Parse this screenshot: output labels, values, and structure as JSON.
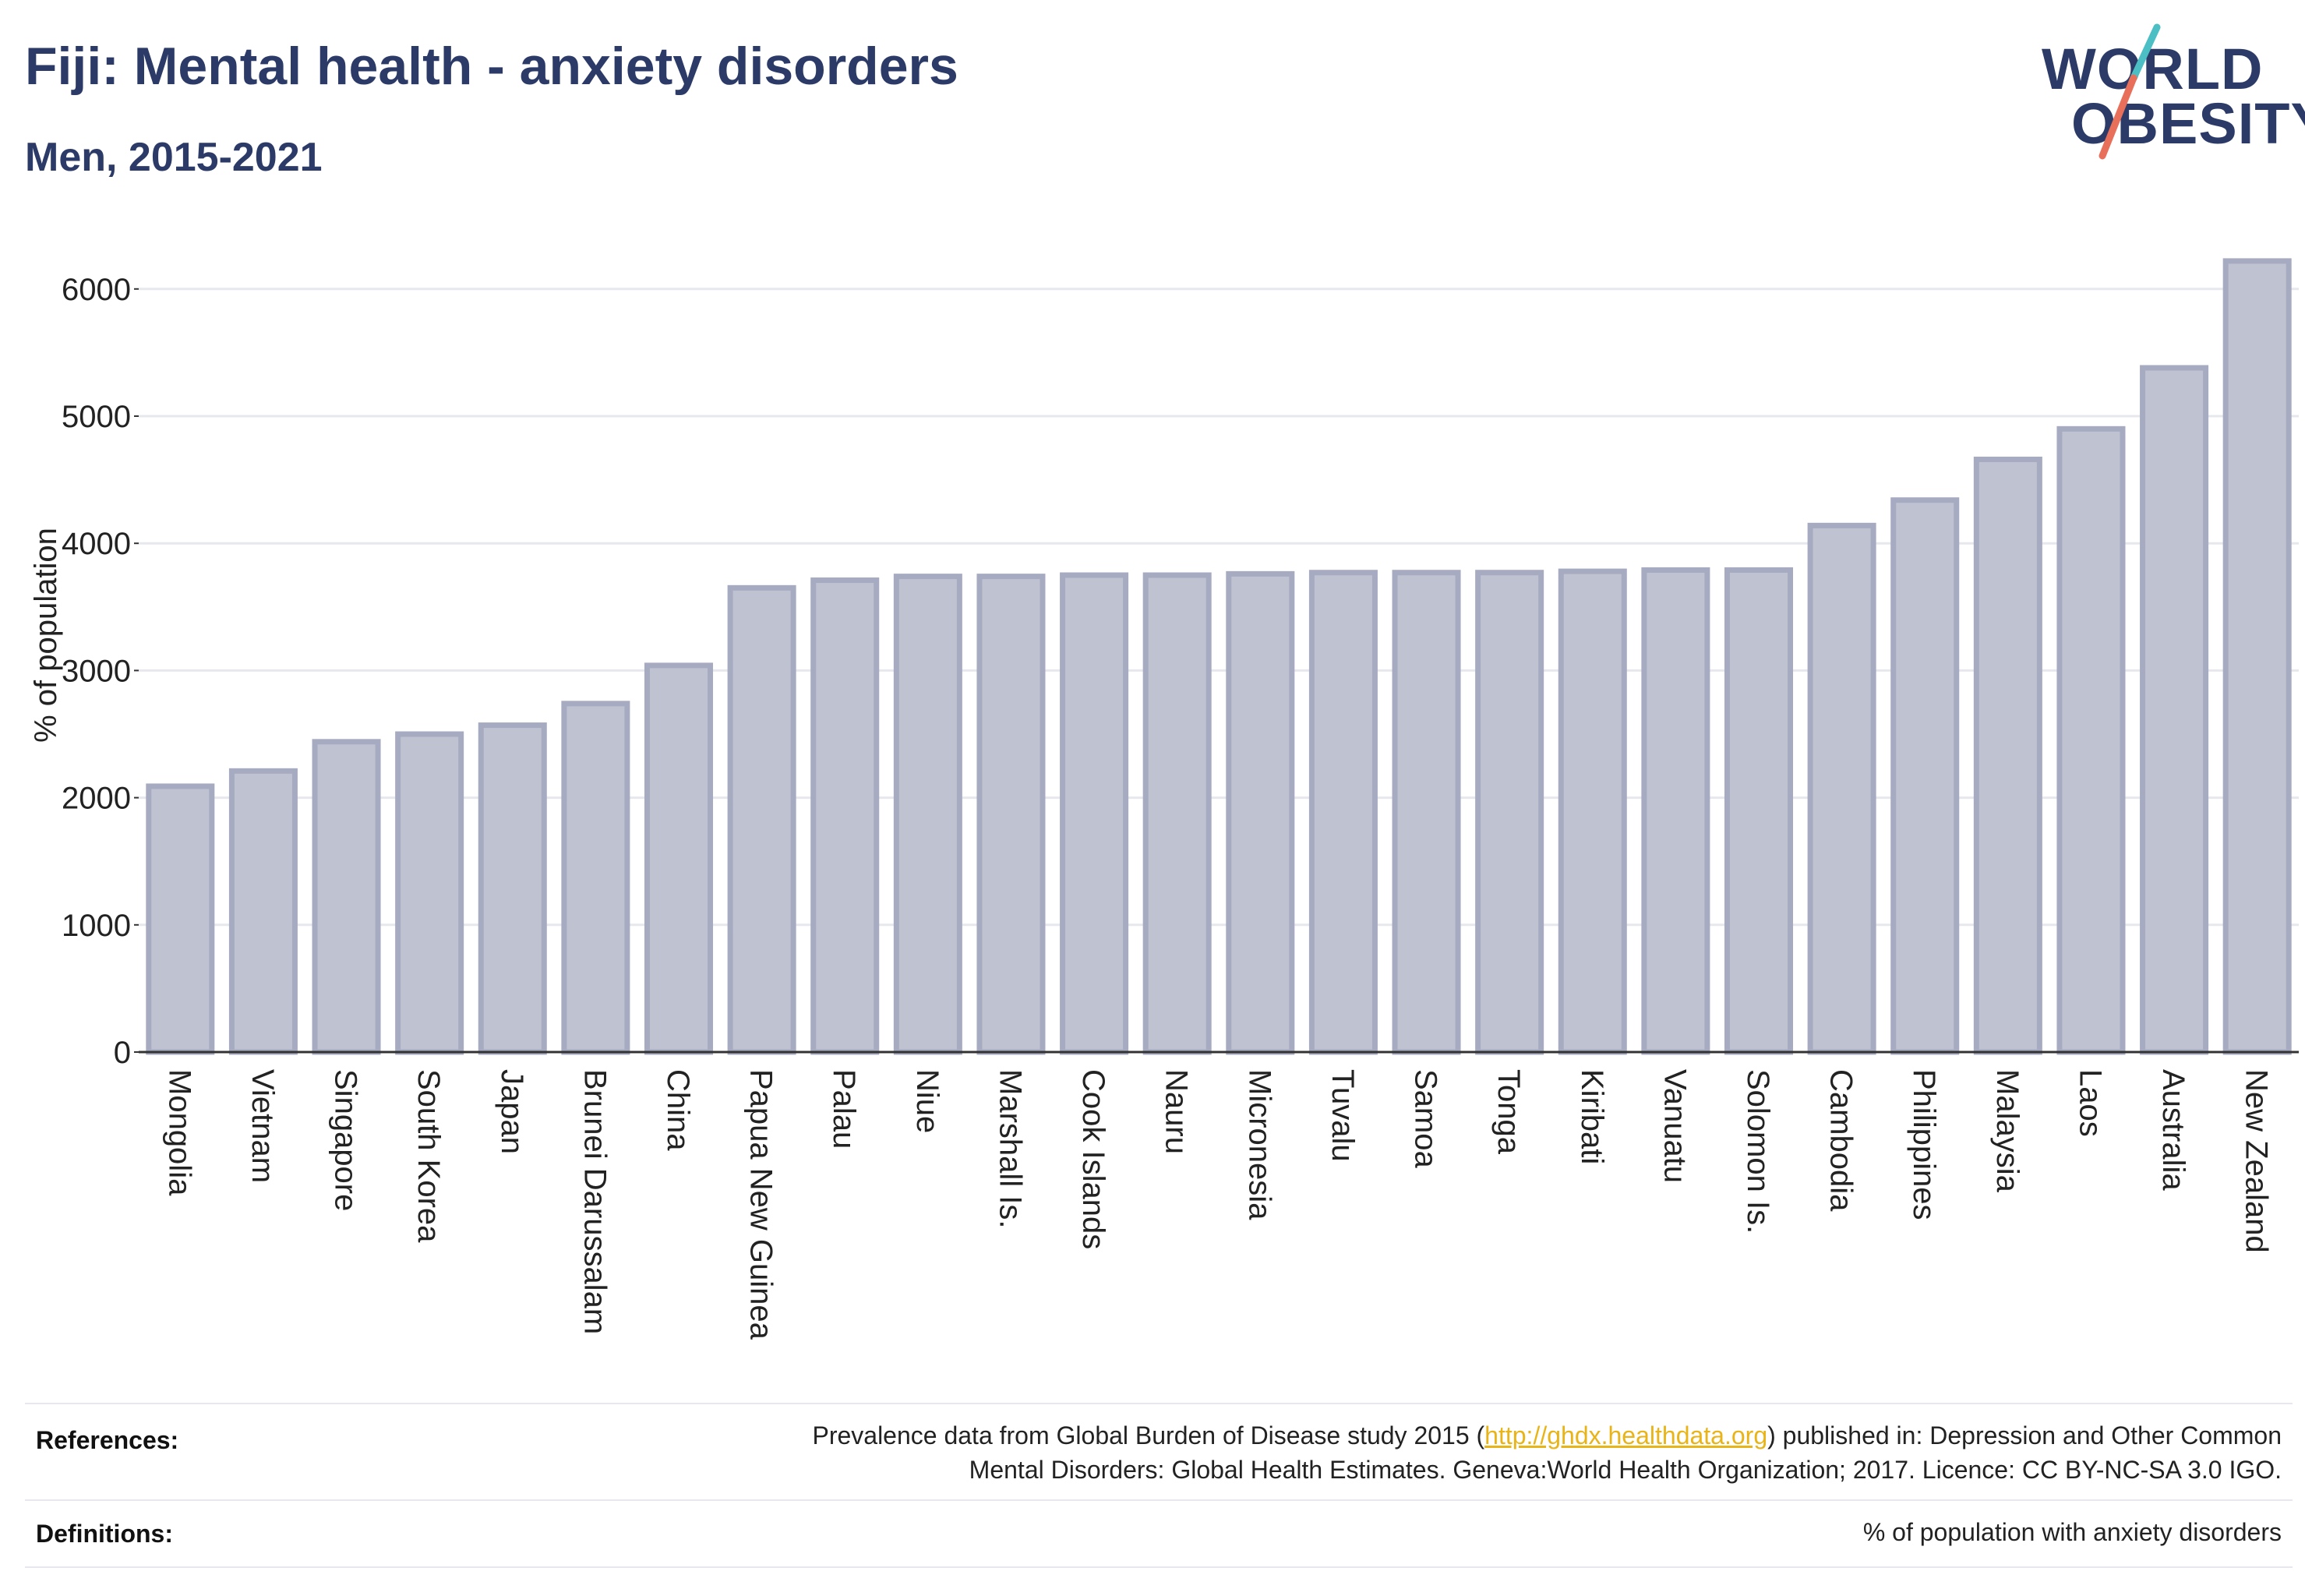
{
  "header": {
    "title": "Fiji: Mental health - anxiety disorders",
    "subtitle": "Men, 2015-2021"
  },
  "logo": {
    "line1": "WORLD",
    "line2": "OBESITY",
    "stroke_colors": [
      "#4bbfc3",
      "#e8705a"
    ]
  },
  "chart_data": {
    "type": "bar",
    "ylabel": "% of population",
    "ylim": [
      0,
      6250
    ],
    "yticks": [
      0,
      1000,
      2000,
      3000,
      4000,
      5000,
      6000
    ],
    "grid": true,
    "bar_color": "#bfc2d0",
    "bar_edge_color": "#a7abc1",
    "categories": [
      "Mongolia",
      "Vietnam",
      "Singapore",
      "South Korea",
      "Japan",
      "Brunei Darussalam",
      "China",
      "Papua New Guinea",
      "Palau",
      "Niue",
      "Marshall Is.",
      "Cook Islands",
      "Nauru",
      "Micronesia",
      "Tuvalu",
      "Samoa",
      "Tonga",
      "Kiribati",
      "Vanuatu",
      "Solomon Is.",
      "Cambodia",
      "Philippines",
      "Malaysia",
      "Laos",
      "Australia",
      "New Zealand"
    ],
    "values": [
      2090,
      2210,
      2440,
      2500,
      2570,
      2740,
      3040,
      3650,
      3710,
      3740,
      3740,
      3750,
      3750,
      3760,
      3770,
      3770,
      3770,
      3780,
      3790,
      3790,
      4140,
      4340,
      4660,
      4900,
      5380,
      6220
    ]
  },
  "footer": {
    "references_label": "References:",
    "references_text_1": "Prevalence data from Global Burden of Disease study 2015 (",
    "references_link": "http://ghdx.healthdata.org",
    "references_text_2": ") published in: Depression and Other Common",
    "references_text_3": "Mental Disorders: Global Health Estimates. Geneva:World Health Organization; 2017. Licence: CC BY-NC-SA 3.0 IGO.",
    "definitions_label": "Definitions:",
    "definitions_text": "% of population with anxiety disorders"
  }
}
